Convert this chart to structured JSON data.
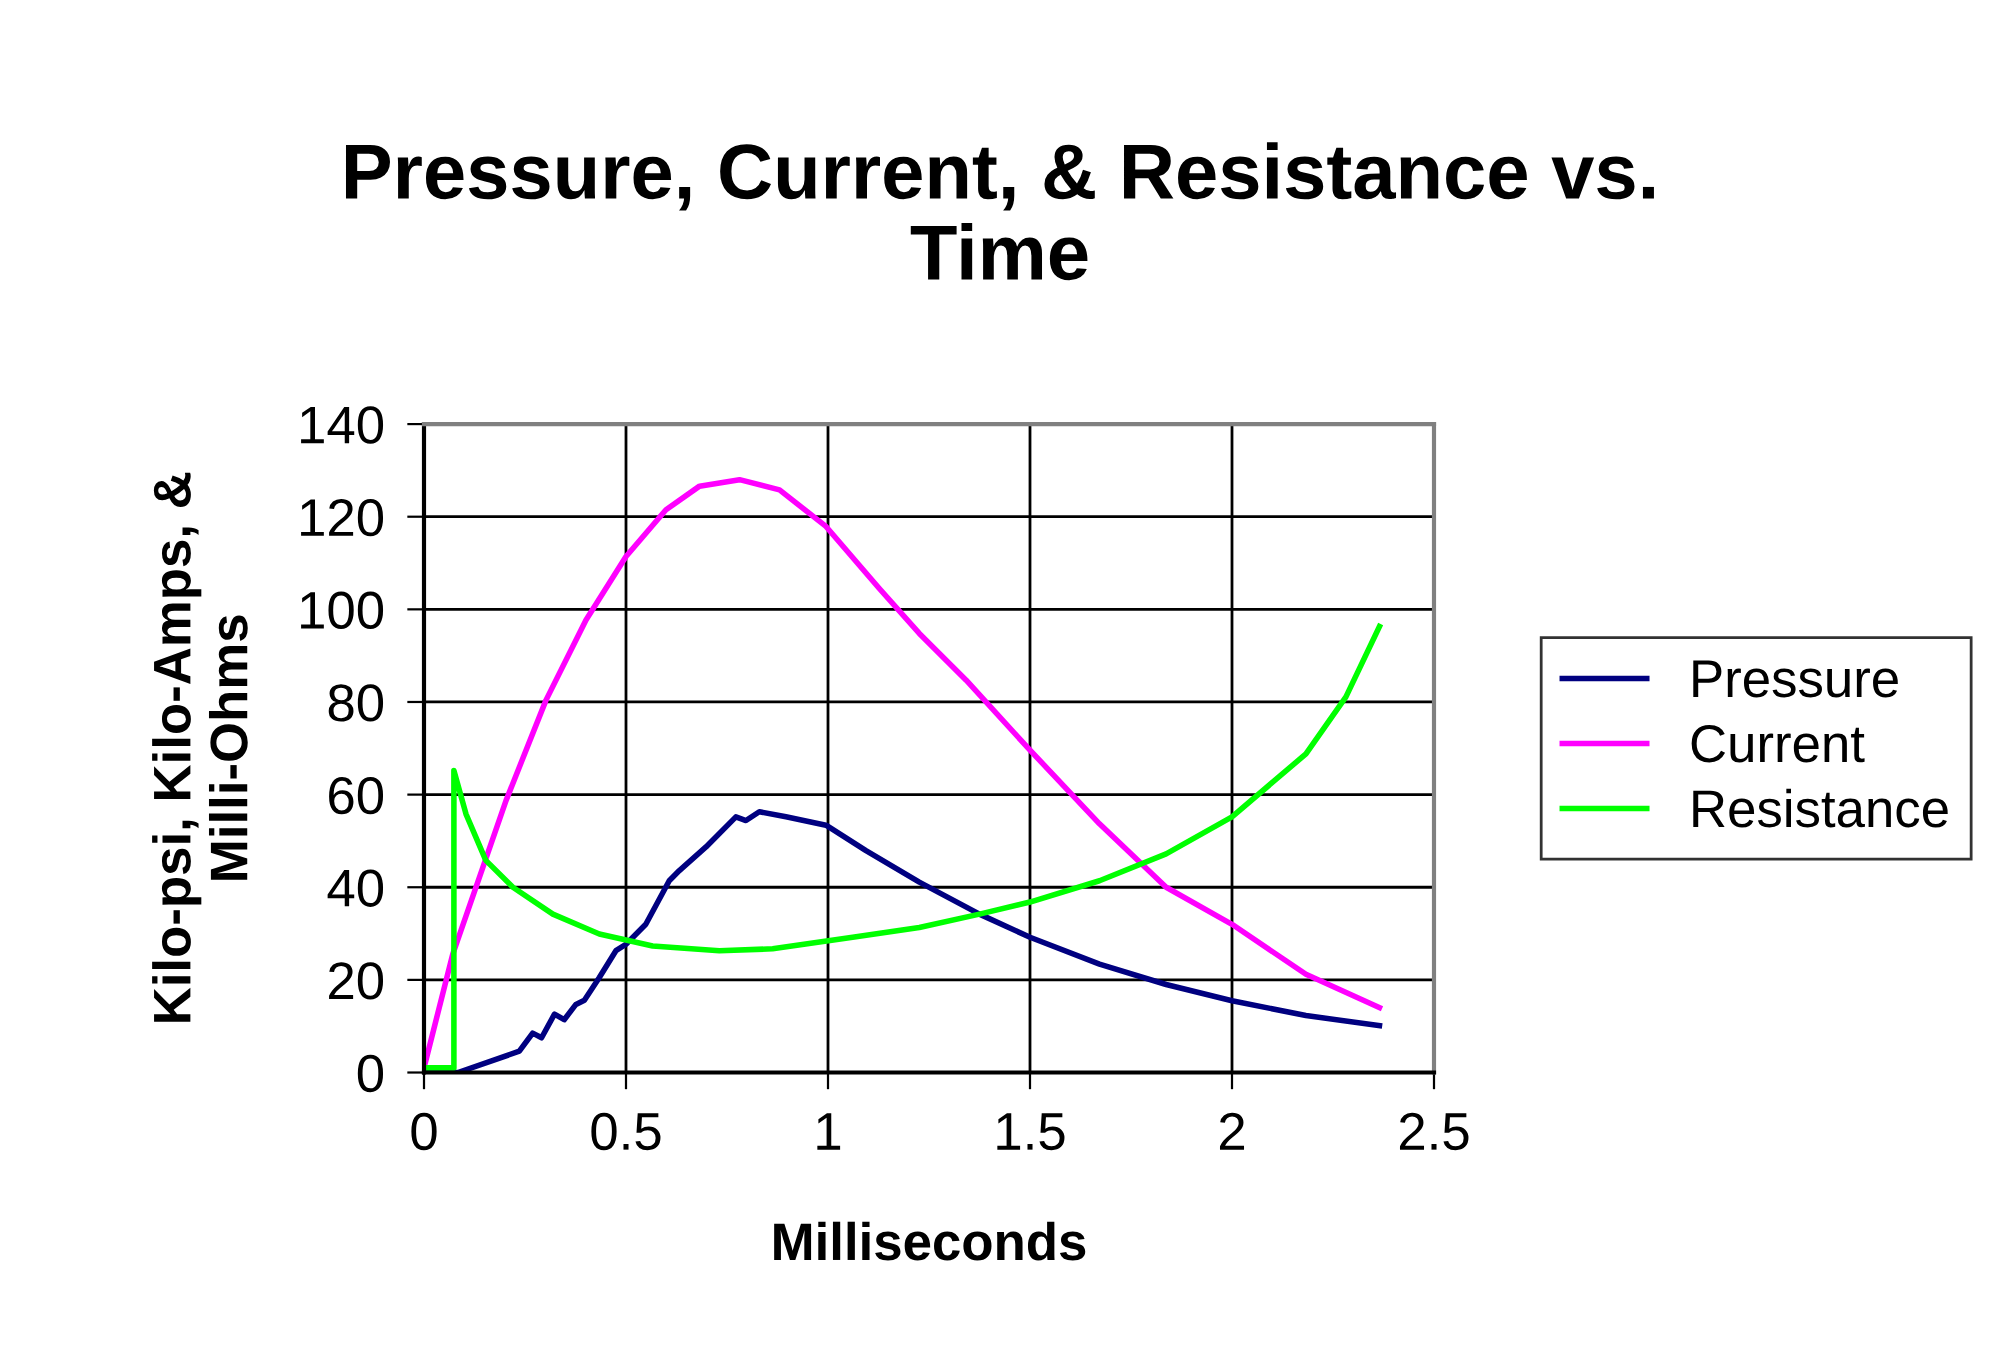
{
  "chart_data": {
    "type": "line",
    "title": "Pressure, Current, & Resistance vs.\nTime",
    "xlabel": "Milliseconds",
    "ylabel": "Kilo-psi, Kilo-Amps, &\nMilli-Ohms",
    "xlim": [
      0,
      2.5
    ],
    "xticks": [
      0,
      0.5,
      1,
      1.5,
      2,
      2.5
    ],
    "ylim": [
      0,
      140
    ],
    "yticks": [
      0,
      20,
      40,
      60,
      80,
      100,
      120,
      140
    ],
    "grid": true,
    "legend": "right",
    "marker": "none",
    "line_style": "solid",
    "series": [
      {
        "name": "Pressure",
        "color": "#000080",
        "x": [
          0,
          0.084,
          0.236,
          0.269,
          0.291,
          0.323,
          0.347,
          0.376,
          0.397,
          0.434,
          0.475,
          0.5,
          0.549,
          0.607,
          0.632,
          0.698,
          0.772,
          0.797,
          0.83,
          0.896,
          0.995,
          1.094,
          1.226,
          1.375,
          1.5,
          1.672,
          1.837,
          2.0,
          2.183,
          2.365
        ],
        "values": [
          0,
          0,
          4.6,
          8.5,
          7.5,
          12.6,
          11.4,
          14.7,
          15.6,
          20.5,
          26.3,
          27.7,
          32,
          41.4,
          43.6,
          48.7,
          55.2,
          54.4,
          56.3,
          55.2,
          53.4,
          47.9,
          41.1,
          34.2,
          29.2,
          23.4,
          19.0,
          15.5,
          12.3,
          10.1
        ]
      },
      {
        "name": "Current",
        "color": "#ff00ff",
        "x": [
          0,
          0.071,
          0.203,
          0.302,
          0.401,
          0.5,
          0.599,
          0.682,
          0.781,
          0.88,
          0.995,
          1.127,
          1.226,
          1.342,
          1.5,
          1.672,
          1.837,
          2.0,
          2.183,
          2.365
        ],
        "values": [
          1,
          25.5,
          58.7,
          80.4,
          97.7,
          111.4,
          121.5,
          126.6,
          128,
          125.8,
          117.9,
          104.5,
          94.8,
          84.7,
          69.6,
          53.7,
          40,
          32,
          21.2,
          14.0
        ]
      },
      {
        "name": "Resistance",
        "color": "#00ff00",
        "x": [
          0,
          0.074,
          0.074,
          0.104,
          0.153,
          0.22,
          0.319,
          0.434,
          0.566,
          0.731,
          0.863,
          1.061,
          1.226,
          1.375,
          1.5,
          1.672,
          1.837,
          2.0,
          2.183,
          2.282,
          2.365
        ],
        "values": [
          1,
          1,
          65.2,
          55.8,
          45.8,
          40,
          34.2,
          29.9,
          27.3,
          26.3,
          26.7,
          29.2,
          31.3,
          34.2,
          36.8,
          41.4,
          47.2,
          55.2,
          68.8,
          81.1,
          96.3
        ]
      }
    ]
  }
}
